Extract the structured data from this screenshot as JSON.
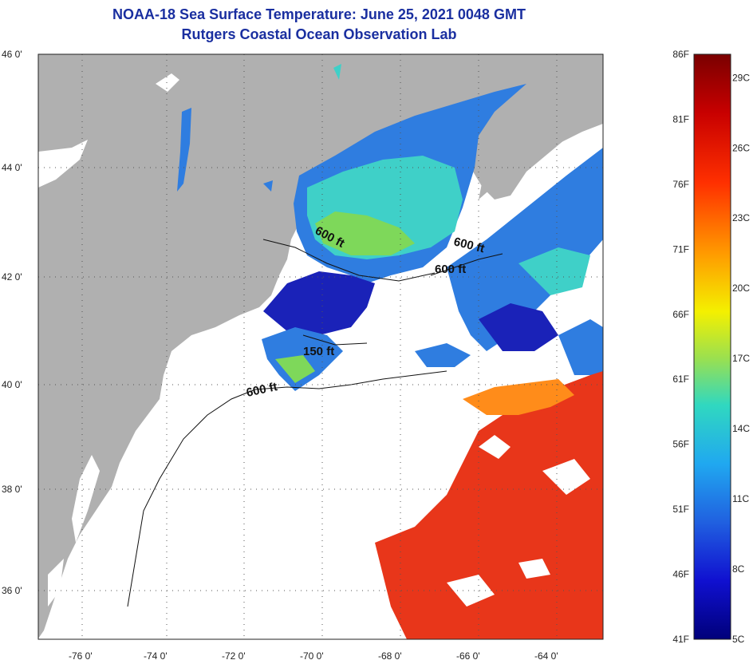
{
  "header": {
    "title": "NOAA-18 Sea Surface Temperature:  June 25, 2021 0048 GMT",
    "subtitle": "Rutgers Coastal Ocean Observation Lab"
  },
  "map": {
    "lon_range": [
      -77,
      -62.5
    ],
    "lat_range": [
      35,
      46
    ],
    "lon_ticks": [
      "-76 0'",
      "-74 0'",
      "-72 0'",
      "-70 0'",
      "-68 0'",
      "-66 0'",
      "-64 0'"
    ],
    "lat_ticks": [
      "46 0'",
      "44 0'",
      "42 0'",
      "40 0'",
      "38 0'",
      "36 0'"
    ],
    "contour_labels": [
      "600 ft",
      "600 ft",
      "600 ft",
      "150 ft",
      "600 ft"
    ],
    "colors": {
      "land": "#b0b0b0",
      "cloud": "#ffffff",
      "warm_water": "#e8361a",
      "cool_water": "#2f7de0",
      "cold_water": "#1a22b8",
      "mid_water": "#3fd0c8"
    }
  },
  "colorbar": {
    "f_labels": [
      "86F",
      "81F",
      "76F",
      "71F",
      "66F",
      "61F",
      "56F",
      "51F",
      "46F",
      "41F"
    ],
    "c_labels": [
      "29C",
      "26C",
      "23C",
      "20C",
      "17C",
      "14C",
      "11C",
      "8C",
      "5C"
    ],
    "range_f": [
      41,
      86
    ],
    "range_c": [
      5,
      30
    ]
  }
}
